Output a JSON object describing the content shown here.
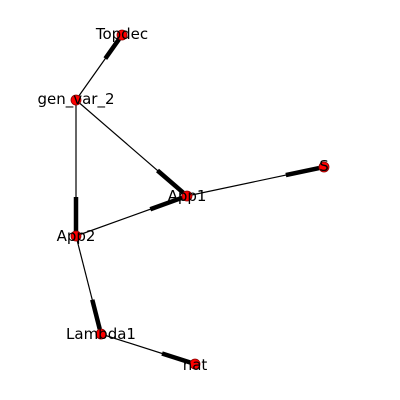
{
  "graph": {
    "node_color": "#ff0000",
    "node_border_color": "#8b0000",
    "edge_color": "#000000",
    "nodes": [
      {
        "id": "topdec",
        "label": "Topdec"
      },
      {
        "id": "gen_var_2",
        "label": "gen_var_2"
      },
      {
        "id": "app1",
        "label": "App1"
      },
      {
        "id": "s",
        "label": "S"
      },
      {
        "id": "app2",
        "label": "App2"
      },
      {
        "id": "lambda1",
        "label": "Lambda1"
      },
      {
        "id": "nat",
        "label": "nat"
      }
    ],
    "edges": [
      {
        "source": "gen_var_2",
        "target": "topdec"
      },
      {
        "source": "gen_var_2",
        "target": "app1"
      },
      {
        "source": "gen_var_2",
        "target": "app2"
      },
      {
        "source": "app1",
        "target": "s"
      },
      {
        "source": "app2",
        "target": "app1"
      },
      {
        "source": "app2",
        "target": "lambda1"
      },
      {
        "source": "lambda1",
        "target": "nat"
      }
    ]
  }
}
